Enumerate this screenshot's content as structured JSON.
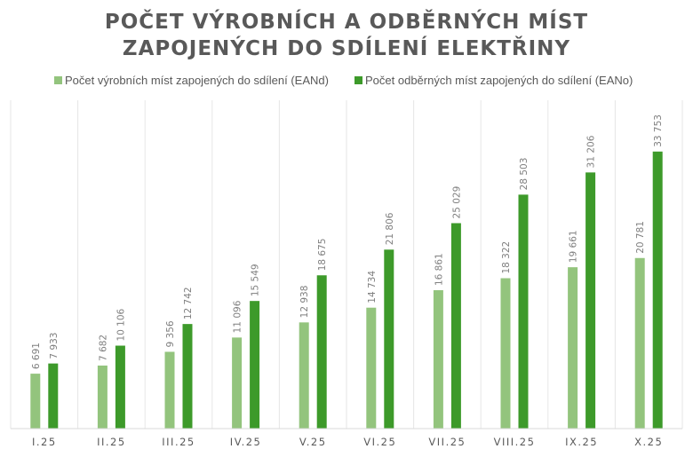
{
  "chart_data": {
    "type": "bar",
    "title_lines": [
      "POČET VÝROBNÍCH A ODBĚRNÝCH MÍST",
      "ZAPOJENÝCH DO SDÍLENÍ ELEKTŘINY"
    ],
    "categories": [
      "I.25",
      "II.25",
      "III.25",
      "IV.25",
      "V.25",
      "VI.25",
      "VII.25",
      "VIII.25",
      "IX.25",
      "X.25"
    ],
    "series": [
      {
        "name": "Počet výrobních míst zapojených do sdílení (EANd)",
        "color": "#93c47d",
        "values": [
          6691,
          7682,
          9356,
          11096,
          12938,
          14734,
          16861,
          18322,
          19661,
          20781
        ],
        "labels": [
          "6 691",
          "7 682",
          "9 356",
          "11 096",
          "12 938",
          "14 734",
          "16 861",
          "18 322",
          "19 661",
          "20 781"
        ]
      },
      {
        "name": "Počet odběrných míst zapojených do sdílení (EANo)",
        "color": "#3d9a2a",
        "values": [
          7933,
          10106,
          12742,
          15549,
          18675,
          21806,
          25029,
          28503,
          31206,
          33753
        ],
        "labels": [
          "7 933",
          "10 106",
          "12 742",
          "15 549",
          "18 675",
          "21 806",
          "25 029",
          "28 503",
          "31 206",
          "33 753"
        ]
      }
    ],
    "ylim": [
      0,
      40000
    ],
    "grid": "vertical-category-separators",
    "legend_position": "top-center",
    "data_labels": "rotated-vertical"
  }
}
